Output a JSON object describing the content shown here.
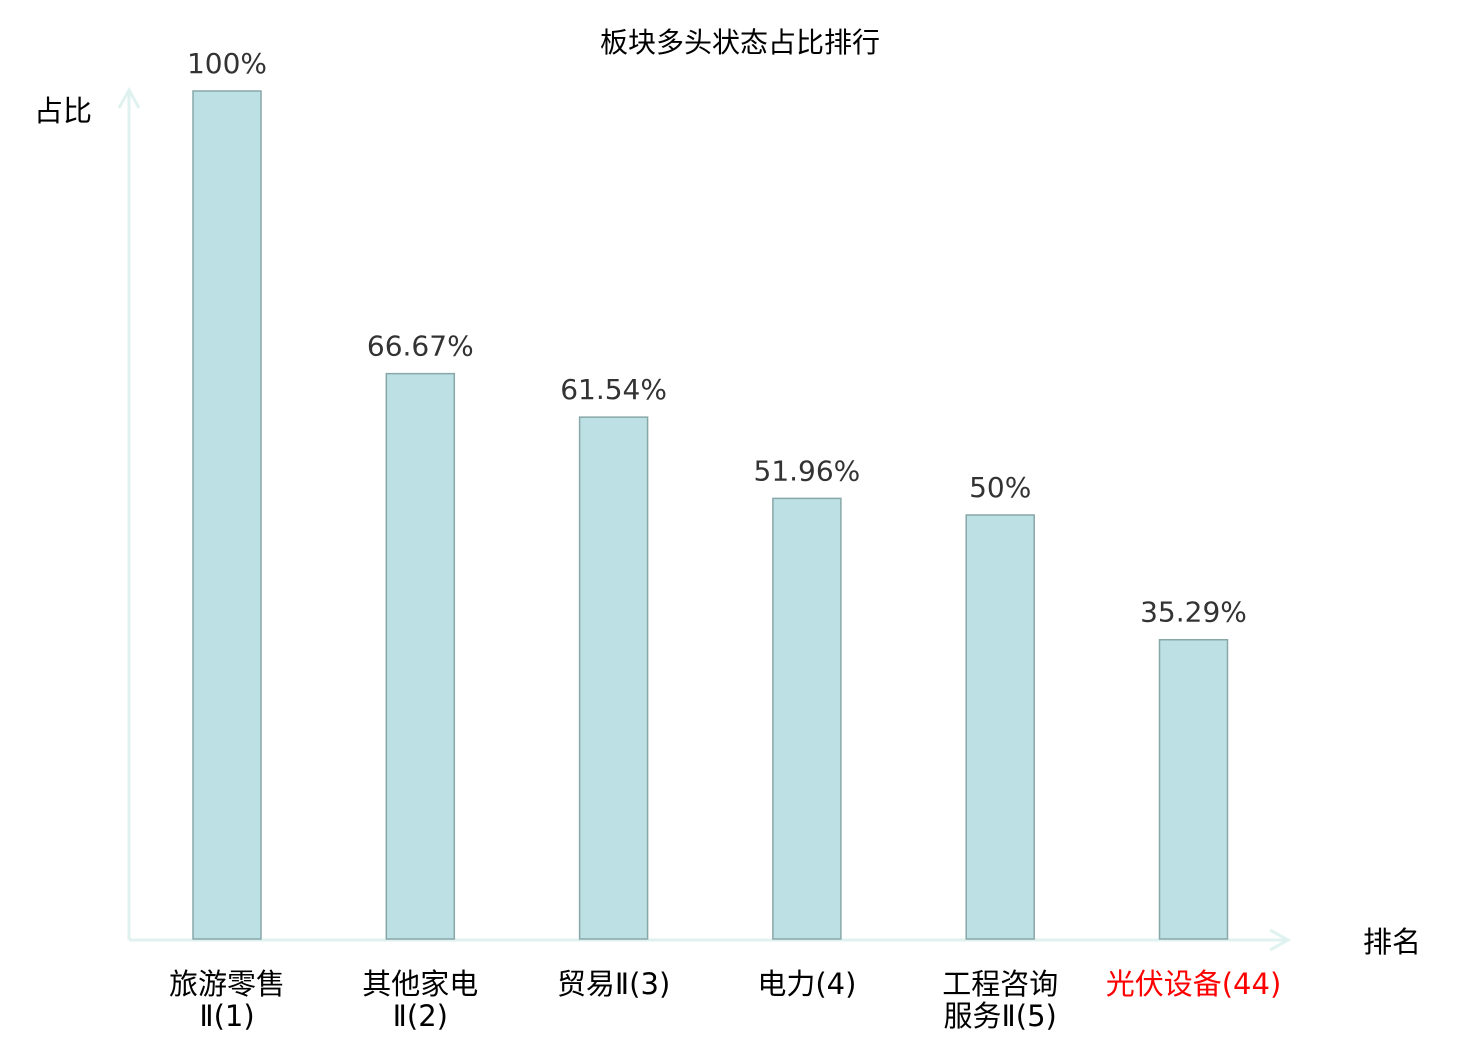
{
  "chart_data": {
    "type": "bar",
    "title": "板块多头状态占比排行",
    "ylabel": "占比",
    "xlabel": "排名",
    "categories": [
      "旅游零售Ⅱ(1)",
      "其他家电Ⅱ(2)",
      "贸易Ⅱ(3)",
      "电力(4)",
      "工程咨询服务Ⅱ(5)",
      "光伏设备(44)"
    ],
    "values": [
      100,
      66.67,
      61.54,
      51.96,
      50,
      35.29
    ],
    "data_labels": [
      "100%",
      "66.67%",
      "61.54%",
      "51.96%",
      "50%",
      "35.29%"
    ],
    "highlight_index": 5,
    "ylim": [
      0,
      100
    ],
    "grid": false,
    "colors": {
      "bar_fill": "#bce0e3",
      "bar_stroke": "#88a7a9",
      "axis": "#dff2ef",
      "text": "#000000",
      "label_text": "#333333",
      "highlight": "#ff0000"
    }
  }
}
